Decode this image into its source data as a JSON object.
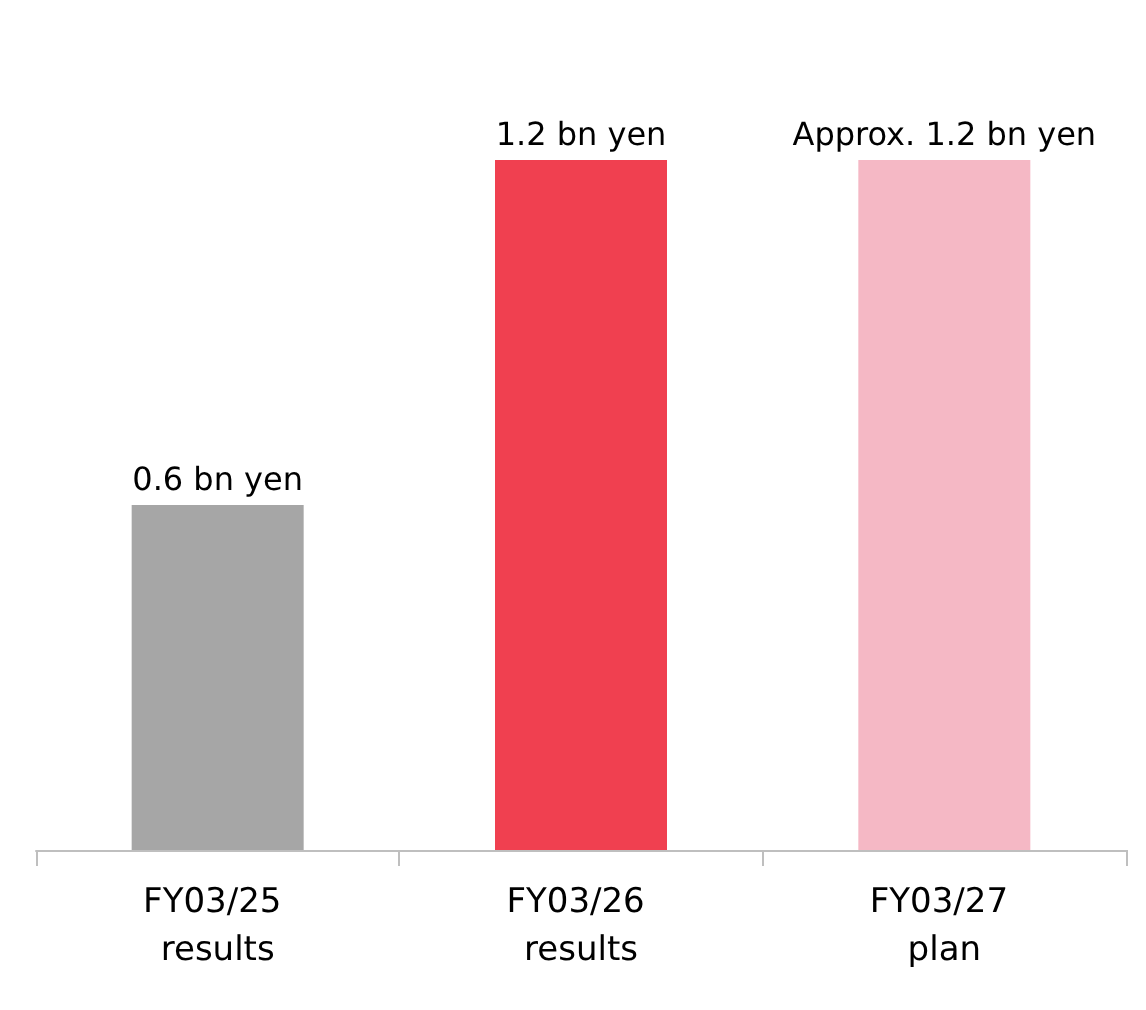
{
  "chart_data": {
    "type": "bar",
    "categories": [
      "FY03/25 results",
      "FY03/26 results",
      "FY03/27 plan"
    ],
    "values": [
      0.6,
      1.2,
      1.2
    ],
    "colors": [
      "#a6a6a6",
      "#f04050",
      "#f5b8c5"
    ],
    "value_labels": [
      "0.6 bn yen",
      "1.2 bn yen",
      "Approx. 1.2 bn yen"
    ],
    "grid": false
  }
}
